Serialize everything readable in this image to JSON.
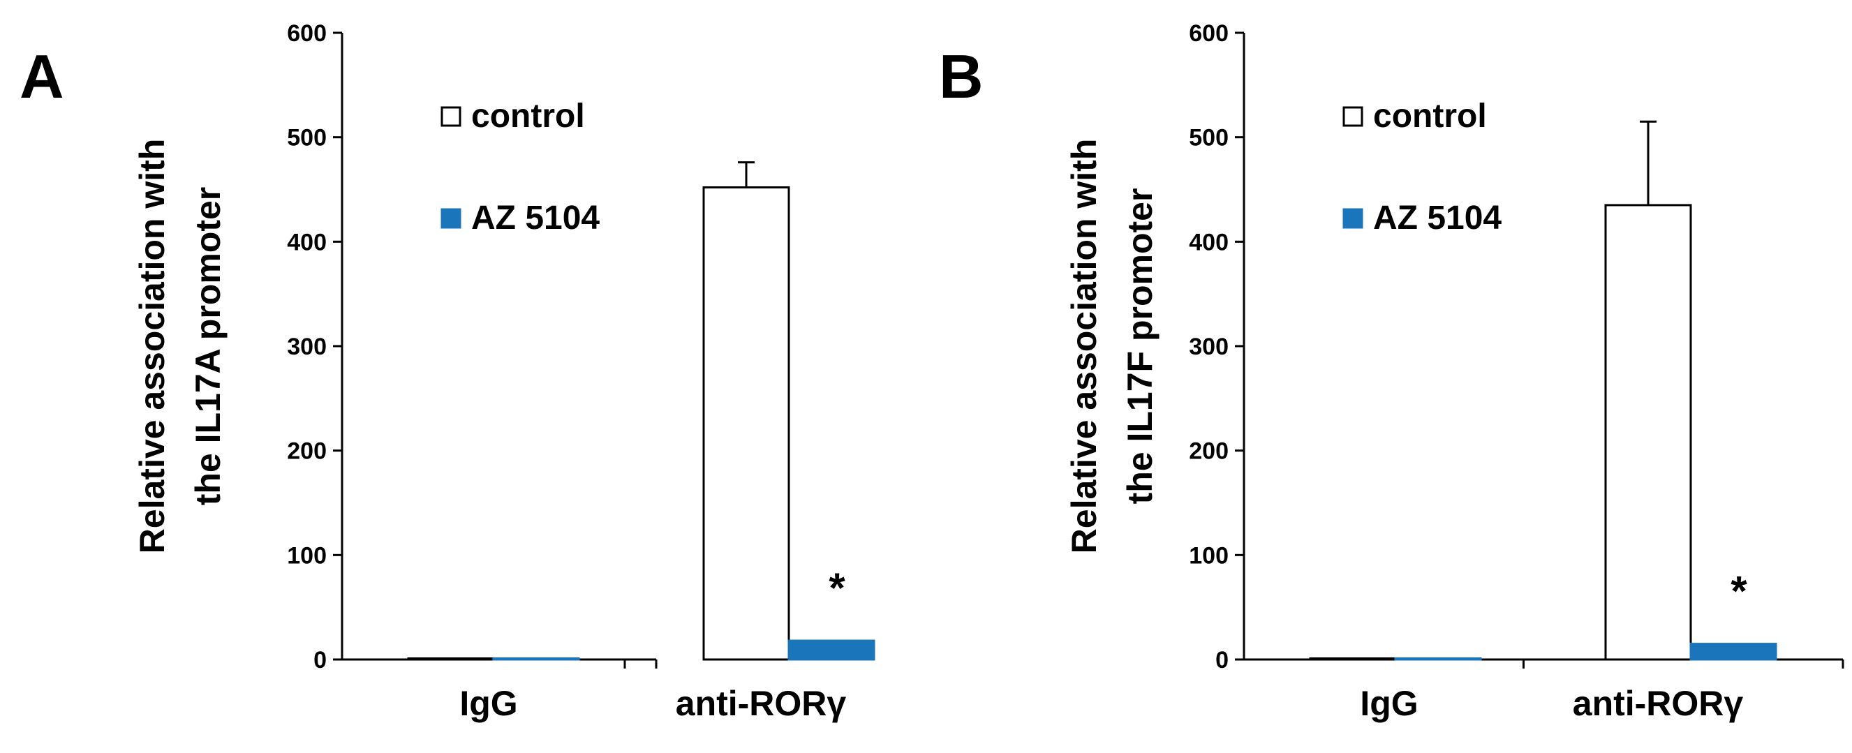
{
  "chart_data": [
    {
      "type": "bar",
      "panel": "A",
      "ylabel": [
        "Relative association with",
        "the IL17A promoter"
      ],
      "ylim": [
        0,
        600
      ],
      "yticks": [
        0,
        100,
        200,
        300,
        400,
        500,
        600
      ],
      "categories": [
        "IgG",
        "anti-RORγ"
      ],
      "series": [
        {
          "name": "control",
          "values": [
            1,
            452
          ],
          "errors": [
            0,
            24
          ],
          "color": "#ffffff"
        },
        {
          "name": "AZ 5104",
          "values": [
            1,
            18
          ],
          "errors": [
            0,
            0
          ],
          "color": "#1b75bb"
        }
      ],
      "annotations": [
        {
          "category": "anti-RORγ",
          "series": "AZ 5104",
          "text": "*"
        }
      ],
      "legend": "upper-left"
    },
    {
      "type": "bar",
      "panel": "B",
      "ylabel": [
        "Relative association with",
        "the IL17F promoter"
      ],
      "ylim": [
        0,
        600
      ],
      "yticks": [
        0,
        100,
        200,
        300,
        400,
        500,
        600
      ],
      "categories": [
        "IgG",
        "anti-RORγ"
      ],
      "series": [
        {
          "name": "control",
          "values": [
            1,
            435
          ],
          "errors": [
            0,
            80
          ],
          "color": "#ffffff"
        },
        {
          "name": "AZ 5104",
          "values": [
            1,
            15
          ],
          "errors": [
            0,
            0
          ],
          "color": "#1b75bb"
        }
      ],
      "annotations": [
        {
          "category": "anti-RORγ",
          "series": "AZ 5104",
          "text": "*"
        }
      ],
      "legend": "upper-left"
    }
  ]
}
